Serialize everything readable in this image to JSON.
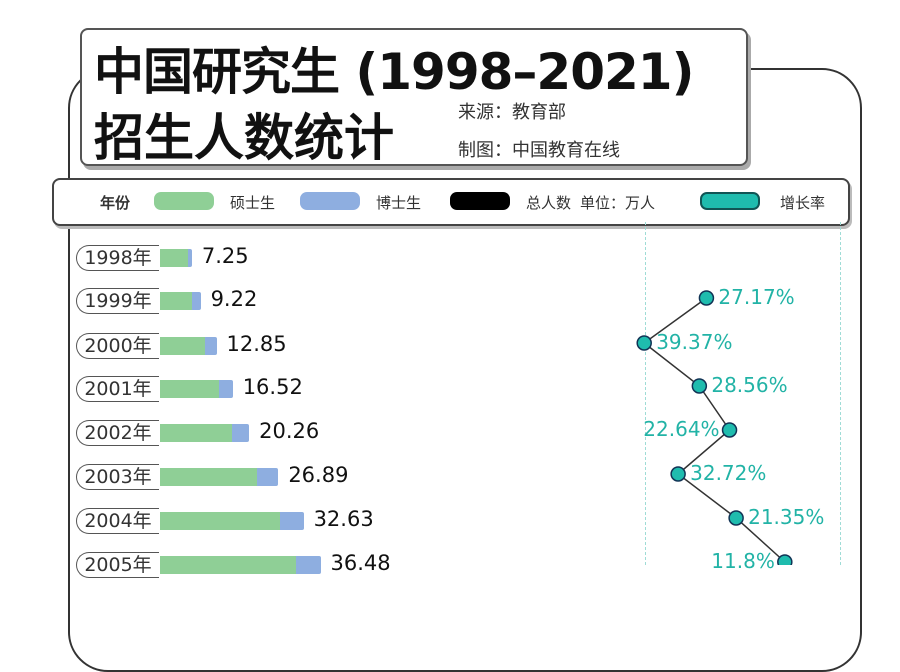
{
  "header": {
    "title_line1": "中国研究生 (1998–2021)",
    "title_line2": "招生人数统计",
    "source": "来源：教育部",
    "maker": "制图：中国教育在线"
  },
  "legend": {
    "year": "年份",
    "master": "硕士生",
    "doctor": "博士生",
    "total": "总人数",
    "unit": "单位：万人",
    "growth": "增长率"
  },
  "colors": {
    "master": "#8fcf96",
    "doctor": "#8eaee0",
    "total": "#000000",
    "growth": "#1fbcae"
  },
  "chart_data": {
    "type": "bar",
    "categories": [
      "1998年",
      "1999年",
      "2000年",
      "2001年",
      "2002年",
      "2003年",
      "2004年",
      "2005年"
    ],
    "series": [
      {
        "name": "总人数",
        "values": [
          7.25,
          9.22,
          12.85,
          16.52,
          20.26,
          26.89,
          32.63,
          36.48
        ]
      },
      {
        "name": "博士生",
        "values": [
          1.0,
          1.99,
          2.51,
          3.21,
          3.83,
          4.87,
          5.33,
          5.48
        ]
      },
      {
        "name": "增长率",
        "values": [
          null,
          27.17,
          39.37,
          28.56,
          22.64,
          32.72,
          21.35,
          11.8
        ]
      }
    ],
    "value_labels": [
      "7.25",
      "9.22",
      "12.85",
      "16.52",
      "20.26",
      "26.89",
      "32.63",
      "36.48"
    ],
    "growth_labels": [
      "",
      "27.17%",
      "39.37%",
      "28.56%",
      "22.64%",
      "32.72%",
      "21.35%",
      "11.8%"
    ]
  }
}
